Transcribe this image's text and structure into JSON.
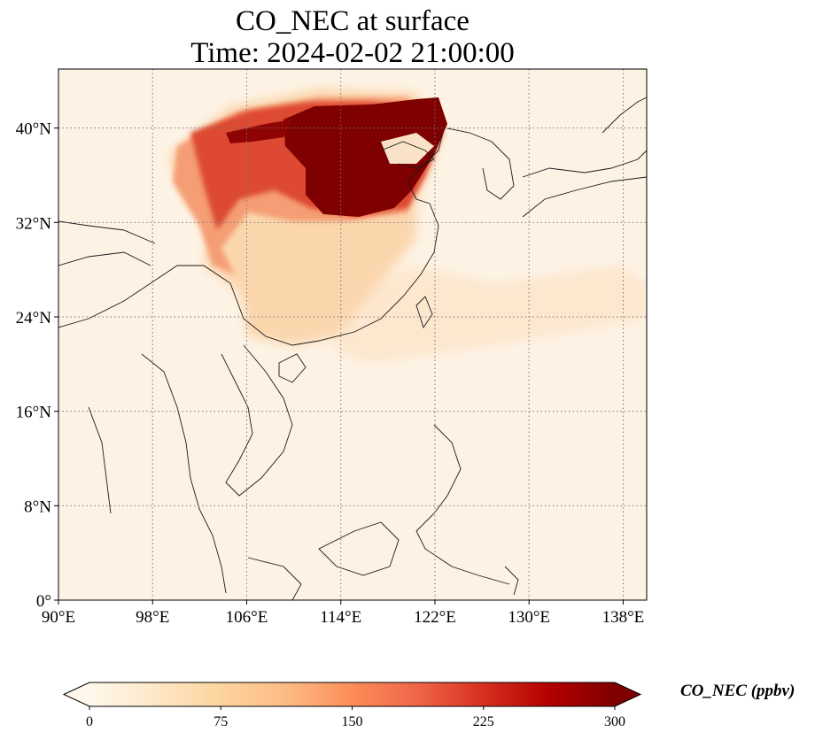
{
  "title": "CO_NEC at surface",
  "subtitle": "Time: 2024-02-02 21:00:00",
  "map": {
    "extent": {
      "lon": [
        90,
        140
      ],
      "lat": [
        0,
        45
      ]
    },
    "lon_ticks": [
      {
        "value": 90,
        "label": "90°E"
      },
      {
        "value": 98,
        "label": "98°E"
      },
      {
        "value": 106,
        "label": "106°E"
      },
      {
        "value": 114,
        "label": "114°E"
      },
      {
        "value": 122,
        "label": "122°E"
      },
      {
        "value": 130,
        "label": "130°E"
      },
      {
        "value": 138,
        "label": "138°E"
      }
    ],
    "lat_ticks": [
      {
        "value": 0,
        "label": "0°"
      },
      {
        "value": 8,
        "label": "8°N"
      },
      {
        "value": 16,
        "label": "16°N"
      },
      {
        "value": 24,
        "label": "24°N"
      },
      {
        "value": 32,
        "label": "32°N"
      },
      {
        "value": 40,
        "label": "40°N"
      }
    ],
    "gridlines": true,
    "background_color": "#fdf3e5"
  },
  "colorbar": {
    "label": "CO_NEC (ppbv)",
    "cmap": "OrRd",
    "colors": [
      "#fff7ec",
      "#fee8c8",
      "#fdd49e",
      "#fdbb84",
      "#fc8d59",
      "#ef6548",
      "#d7301f",
      "#b30000",
      "#7f0000"
    ],
    "range": [
      0,
      300
    ],
    "extend": "both",
    "ticks": [
      {
        "value": 0,
        "label": "0"
      },
      {
        "value": 75,
        "label": "75"
      },
      {
        "value": 150,
        "label": "150"
      },
      {
        "value": 225,
        "label": "225"
      },
      {
        "value": 300,
        "label": "300"
      }
    ]
  }
}
